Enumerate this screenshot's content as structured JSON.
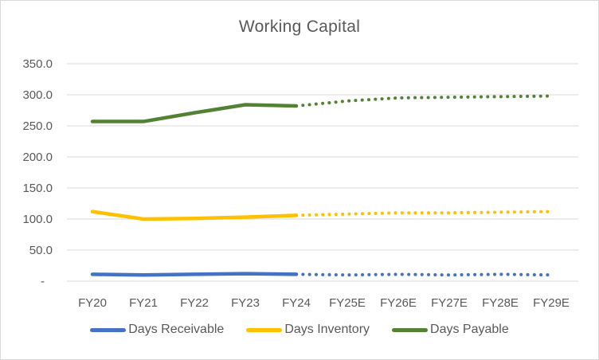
{
  "window": {
    "background": "#FFFFFF",
    "border_color": "#D9D9D9"
  },
  "chart_data": {
    "type": "line",
    "title": "Working Capital",
    "title_color": "#595959",
    "categories": [
      "FY20",
      "FY21",
      "FY22",
      "FY23",
      "FY24",
      "FY25E",
      "FY26E",
      "FY27E",
      "FY28E",
      "FY29E"
    ],
    "solid_until_index": 4,
    "forecast_style": "dotted",
    "series": [
      {
        "name": "Days Receivable",
        "color": "#4472C4",
        "values": [
          11,
          10,
          11,
          12,
          11,
          10,
          11,
          10,
          11,
          10
        ]
      },
      {
        "name": "Days Inventory",
        "color": "#FFC000",
        "values": [
          112,
          100,
          101,
          103,
          106,
          108,
          110,
          110,
          111,
          112
        ]
      },
      {
        "name": "Days Payable",
        "color": "#548235",
        "values": [
          257,
          257,
          271,
          284,
          282,
          290,
          295,
          296,
          297,
          298
        ]
      }
    ],
    "y_axis": {
      "min": 0,
      "max": 350,
      "step": 50,
      "tick_labels": [
        "-",
        "50.0",
        "100.0",
        "150.0",
        "200.0",
        "250.0",
        "300.0",
        "350.0"
      ]
    },
    "grid": true,
    "gridline_color": "#D9D9D9",
    "axis_text_color": "#595959",
    "legend_position": "bottom"
  }
}
